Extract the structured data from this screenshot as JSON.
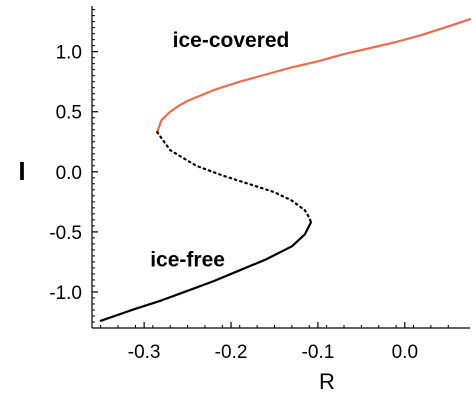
{
  "chart_data": {
    "type": "line",
    "title": "",
    "xlabel": "R",
    "ylabel": "I",
    "xlim": [
      -0.36,
      0.075
    ],
    "ylim": [
      -1.3,
      1.38
    ],
    "x_ticks": [
      -0.3,
      -0.2,
      -0.1,
      0.0
    ],
    "x_tick_labels": [
      "-0.3",
      "-0.2",
      "-0.1",
      "0.0"
    ],
    "y_ticks": [
      -1.0,
      -0.5,
      0.0,
      0.5,
      1.0
    ],
    "y_tick_labels": [
      "-1.0",
      "-0.5",
      "0.0",
      "0.5",
      "1.0"
    ],
    "grid": false,
    "legend": "none",
    "series": [
      {
        "style": "solid",
        "color": "#f26b4f",
        "x": [
          -0.285,
          -0.28,
          -0.27,
          -0.26,
          -0.25,
          -0.22,
          -0.19,
          -0.16,
          -0.13,
          -0.1,
          -0.07,
          -0.04,
          -0.01,
          0.02,
          0.05,
          0.075
        ],
        "y": [
          0.33,
          0.43,
          0.5,
          0.55,
          0.59,
          0.68,
          0.75,
          0.81,
          0.87,
          0.92,
          0.98,
          1.03,
          1.08,
          1.14,
          1.21,
          1.27
        ]
      },
      {
        "style": "dotted",
        "color": "#000000",
        "x": [
          -0.285,
          -0.27,
          -0.24,
          -0.21,
          -0.18,
          -0.15,
          -0.13,
          -0.115,
          -0.11,
          -0.108
        ],
        "y": [
          0.33,
          0.18,
          0.05,
          -0.03,
          -0.1,
          -0.17,
          -0.24,
          -0.32,
          -0.38,
          -0.42
        ]
      },
      {
        "style": "solid",
        "color": "#000000",
        "x": [
          -0.108,
          -0.115,
          -0.13,
          -0.16,
          -0.19,
          -0.22,
          -0.25,
          -0.28,
          -0.31,
          -0.35
        ],
        "y": [
          -0.42,
          -0.52,
          -0.62,
          -0.73,
          -0.82,
          -0.91,
          -0.99,
          -1.07,
          -1.14,
          -1.24
        ]
      }
    ],
    "annotations": [
      {
        "text": "ice-covered",
        "x": -0.2,
        "y": 1.04
      },
      {
        "text": "ice-free",
        "x": -0.25,
        "y": -0.79
      }
    ]
  }
}
